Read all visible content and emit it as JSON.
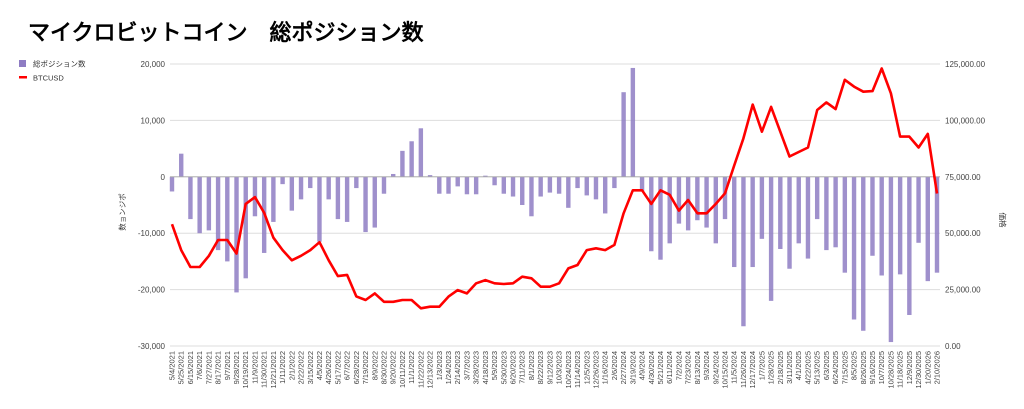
{
  "chart_data": {
    "type": "bar+line",
    "title": "マイクロビットコイン　総ポジション数",
    "legend": {
      "placement": "top-left",
      "entries": [
        "総ポジション数",
        "BTCUSD"
      ]
    },
    "ylabel_left": "数ョンジポ",
    "ylabel_right": "価格",
    "xlabel": "",
    "ylim_left": [
      -30000,
      20000
    ],
    "ylim_right": [
      0,
      125000
    ],
    "yticks_left": [
      "20,000",
      "10,000",
      "0",
      "-10,000",
      "-20,000",
      "-30,000"
    ],
    "yticks_left_values": [
      20000,
      10000,
      0,
      -10000,
      -20000,
      -30000
    ],
    "yticks_right": [
      "125,000.00",
      "100,000.00",
      "75,000.00",
      "50,000.00",
      "25,000.00",
      "0.00"
    ],
    "yticks_right_values": [
      125000,
      100000,
      75000,
      50000,
      25000,
      0
    ],
    "grid": true,
    "colors": {
      "bars": "#8e7cc3",
      "line": "#ff0000",
      "grid": "#dddddd"
    },
    "categories": [
      "5/4/2021",
      "5/25/2021",
      "6/15/2021",
      "7/6/2021",
      "7/27/2021",
      "8/17/2021",
      "9/7/2021",
      "9/28/2021",
      "10/19/2021",
      "11/9/2021",
      "11/30/2021",
      "12/21/2021",
      "1/11/2022",
      "2/1/2022",
      "2/22/2022",
      "3/15/2022",
      "4/5/2022",
      "4/26/2022",
      "5/17/2022",
      "6/7/2022",
      "6/28/2022",
      "7/19/2022",
      "8/9/2022",
      "8/30/2022",
      "9/20/2022",
      "10/11/2022",
      "11/1/2022",
      "11/22/2022",
      "12/13/2022",
      "1/3/2023",
      "1/24/2023",
      "2/14/2023",
      "3/7/2023",
      "3/28/2023",
      "4/18/2023",
      "5/9/2023",
      "5/30/2023",
      "6/20/2023",
      "7/11/2023",
      "8/1/2023",
      "8/22/2023",
      "9/12/2023",
      "10/3/2023",
      "10/24/2023",
      "11/14/2023",
      "12/5/2023",
      "12/26/2023",
      "1/16/2024",
      "2/6/2024",
      "2/27/2024",
      "3/19/2024",
      "4/9/2024",
      "4/30/2024",
      "5/21/2024",
      "6/11/2024",
      "7/2/2024",
      "7/23/2024",
      "8/13/2024",
      "9/3/2024",
      "9/24/2024",
      "10/15/2024",
      "11/5/2024",
      "11/26/2024",
      "12/17/2024",
      "1/7/2025",
      "1/28/2025",
      "2/18/2025",
      "3/11/2025",
      "4/1/2025",
      "4/22/2025",
      "5/13/2025",
      "6/3/2025",
      "6/24/2025",
      "7/15/2025",
      "8/5/2025",
      "8/26/2025",
      "9/16/2025",
      "10/7/2025",
      "10/28/2025",
      "11/18/2025",
      "12/9/2025",
      "12/30/2025",
      "1/20/2026",
      "2/10/2026"
    ],
    "series": [
      {
        "name": "総ポジション数",
        "type": "bar",
        "axis": "left",
        "values": [
          -2600,
          4100,
          -7500,
          -10000,
          -9500,
          -13000,
          -15000,
          -20500,
          -18000,
          -7000,
          -13500,
          -8000,
          -1300,
          -6000,
          -4000,
          -2000,
          -11500,
          -4000,
          -7500,
          -8000,
          -2000,
          -9800,
          -9000,
          -3000,
          500,
          4600,
          6300,
          8600,
          300,
          -3000,
          -3000,
          -1700,
          -3100,
          -3100,
          200,
          -1500,
          -3000,
          -3500,
          -5000,
          -7000,
          -3500,
          -2800,
          -3000,
          -5500,
          -2000,
          -3300,
          -4000,
          -6500,
          -2000,
          15000,
          19300,
          -2500,
          -13200,
          -14700,
          -11800,
          -8300,
          -9500,
          -7700,
          -9000,
          -11800,
          -7500,
          -16000,
          -26500,
          -16000,
          -11000,
          -22000,
          -12800,
          -16300,
          -11800,
          -14500,
          -7500,
          -13000,
          -12500,
          -17000,
          -25300,
          -27300,
          -14000,
          -17500,
          -29300,
          -17300,
          -24500,
          -11700,
          -18500,
          -17000
        ]
      },
      {
        "name": "BTCUSD",
        "type": "line",
        "axis": "right",
        "values": [
          54000,
          42500,
          35000,
          35000,
          40000,
          47000,
          47000,
          41000,
          63000,
          66000,
          59000,
          48000,
          42500,
          38000,
          40000,
          42500,
          46000,
          38000,
          31000,
          31500,
          22000,
          20400,
          23300,
          19600,
          19600,
          20400,
          20400,
          16700,
          17400,
          17400,
          21900,
          24800,
          23300,
          27800,
          29200,
          27800,
          27500,
          27800,
          30700,
          30000,
          26300,
          26300,
          27800,
          34400,
          35900,
          42500,
          43300,
          42500,
          44800,
          58800,
          69000,
          69000,
          63000,
          69000,
          67000,
          60000,
          64700,
          58800,
          58800,
          63000,
          67700,
          80000,
          92000,
          107000,
          95000,
          106000,
          95000,
          84000,
          86000,
          88000,
          104600,
          108000,
          105000,
          118000,
          115000,
          112700,
          113000,
          123000,
          112000,
          92800,
          92800,
          88000,
          94000,
          67600
        ]
      }
    ]
  }
}
